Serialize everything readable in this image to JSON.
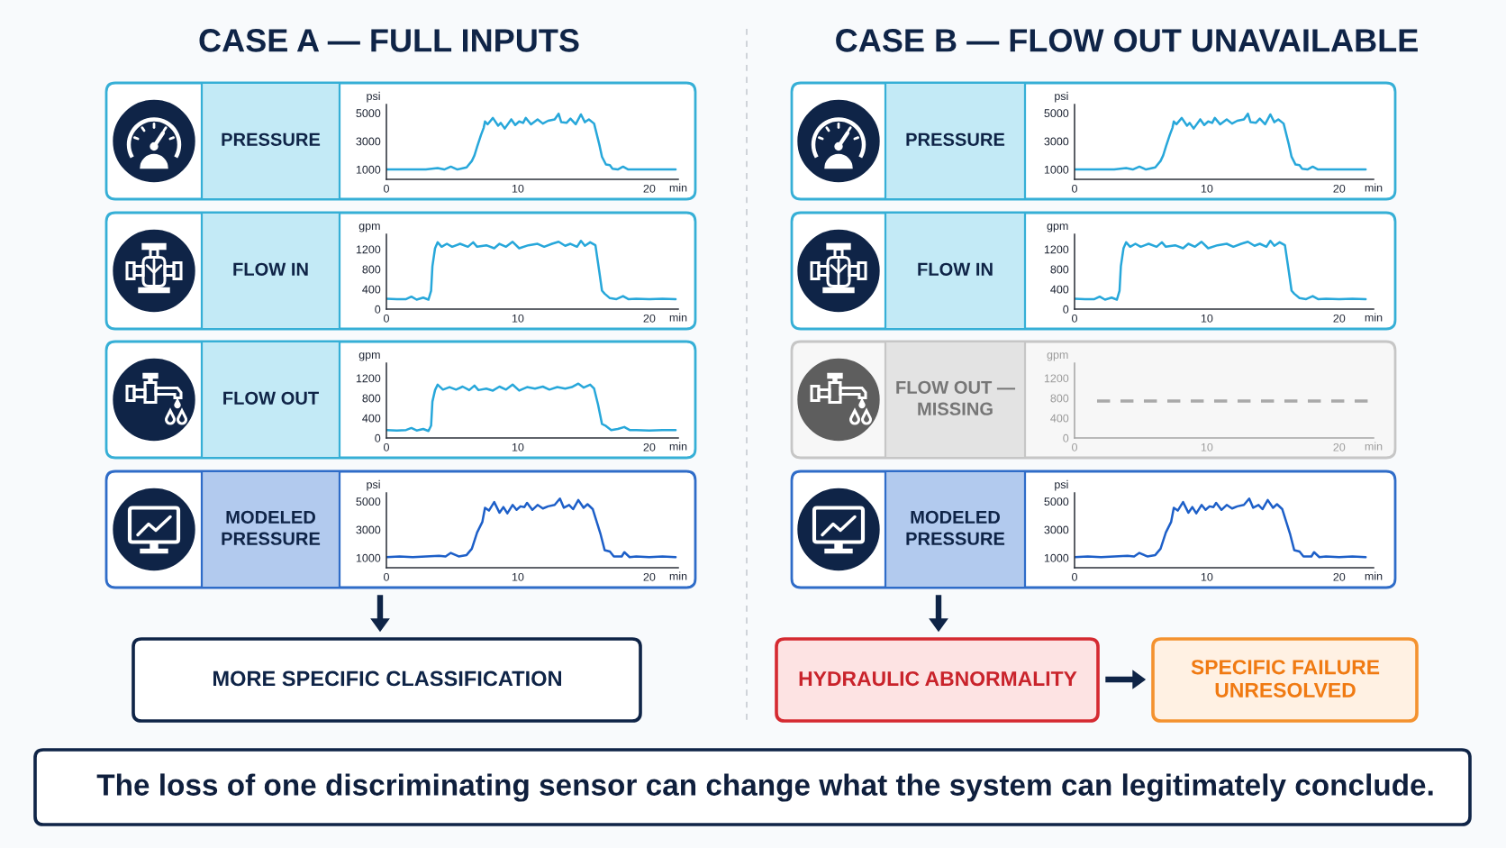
{
  "chart_data": [
    {
      "type": "other",
      "annotations": [
        "CASE A — FULL INPUTS",
        "CASE B — FLOW OUT UNAVAILABLE",
        "MORE SPECIFIC CLASSIFICATION",
        "HYDRAULIC ABNORMALITY",
        "SPECIFIC FAILURE\nUNRESOLVED",
        "The loss of one discriminating sensor can change what the system can legitimately conclude."
      ]
    },
    {
      "type": "line",
      "title": "PRESSURE",
      "xlabel": "min",
      "ylabel": "psi",
      "xlim": [
        0,
        22.2
      ],
      "xticks": [
        0,
        10,
        20
      ],
      "ylim": [
        300,
        5600
      ],
      "yticks": [
        1000,
        3000,
        5000
      ],
      "series": [
        {
          "color": "#27a7da",
          "x": [
            0,
            1,
            2,
            3,
            3.9,
            4.4,
            4.9,
            5.4,
            6.1,
            6.5,
            6.7,
            6.9,
            7.2,
            7.4,
            7.5,
            7.7,
            8.1,
            8.5,
            8.7,
            9,
            9.5,
            9.8,
            10.1,
            10.4,
            10.6,
            11,
            11.5,
            11.9,
            12.3,
            12.8,
            13.1,
            13.3,
            13.7,
            14,
            14.4,
            14.8,
            15.1,
            15.4,
            15.8,
            16,
            16.2,
            16.4,
            16.7,
            17,
            17.2,
            17.6,
            18,
            18.4,
            19,
            20,
            21,
            22
          ],
          "values": [
            1000,
            1000,
            1000,
            1000,
            1100,
            1000,
            1200,
            1000,
            1150,
            1600,
            2000,
            2600,
            3450,
            3950,
            4400,
            4200,
            4650,
            4100,
            4300,
            3900,
            4550,
            4150,
            4400,
            4300,
            4650,
            4200,
            4550,
            4250,
            4450,
            4550,
            4950,
            4350,
            4300,
            4600,
            4200,
            4900,
            4350,
            4550,
            4250,
            3500,
            2750,
            1900,
            1350,
            1300,
            1050,
            1000,
            1200,
            1000,
            1000,
            1000,
            1000,
            1000
          ]
        }
      ]
    },
    {
      "type": "line",
      "title": "FLOW IN",
      "xlabel": "min",
      "ylabel": "gpm",
      "xlim": [
        0,
        22.2
      ],
      "xticks": [
        0,
        10,
        20
      ],
      "ylim": [
        0,
        1500
      ],
      "yticks": [
        0,
        400,
        800,
        1200
      ],
      "series": [
        {
          "color": "#27a7da",
          "x": [
            0,
            0.8,
            1.5,
            1.9,
            2.3,
            2.8,
            3.2,
            3.4,
            3.5,
            3.7,
            3.9,
            4.2,
            4.6,
            5,
            5.6,
            6.2,
            6.6,
            6.9,
            7.6,
            8.2,
            8.6,
            9.1,
            9.6,
            10.1,
            10.8,
            11.5,
            12,
            12.6,
            13.1,
            13.6,
            14,
            14.5,
            14.8,
            15.1,
            15.5,
            15.9,
            16.2,
            16.4,
            16.6,
            17,
            17.5,
            18,
            18.4,
            19,
            20,
            21,
            22
          ],
          "values": [
            210,
            200,
            200,
            250,
            190,
            230,
            190,
            370,
            860,
            1220,
            1340,
            1250,
            1310,
            1250,
            1310,
            1250,
            1340,
            1250,
            1280,
            1220,
            1310,
            1250,
            1350,
            1220,
            1280,
            1310,
            1250,
            1310,
            1350,
            1270,
            1310,
            1250,
            1370,
            1270,
            1340,
            1280,
            740,
            370,
            310,
            220,
            200,
            260,
            200,
            210,
            200,
            210,
            200
          ]
        }
      ]
    },
    {
      "type": "line",
      "title": "FLOW OUT",
      "xlabel": "min",
      "ylabel": "gpm",
      "xlim": [
        0,
        22.2
      ],
      "xticks": [
        0,
        10,
        20
      ],
      "ylim": [
        0,
        1500
      ],
      "yticks": [
        0,
        400,
        800,
        1200
      ],
      "series": [
        {
          "color": "#27a7da",
          "x": [
            0,
            0.8,
            1.5,
            1.9,
            2.3,
            2.8,
            3.2,
            3.4,
            3.5,
            3.7,
            3.9,
            4.3,
            4.8,
            5.3,
            5.8,
            6.3,
            6.7,
            7,
            7.6,
            8.1,
            8.6,
            9.1,
            9.6,
            10.1,
            10.7,
            11.3,
            11.9,
            12.4,
            13,
            13.6,
            14.1,
            14.6,
            15,
            15.5,
            15.8,
            16.1,
            16.4,
            16.7,
            17.1,
            17.6,
            18.1,
            18.5,
            19,
            20,
            21,
            22
          ],
          "values": [
            160,
            150,
            160,
            200,
            150,
            180,
            140,
            250,
            730,
            960,
            1070,
            970,
            1020,
            970,
            1030,
            960,
            1050,
            960,
            990,
            950,
            1030,
            970,
            1070,
            950,
            1020,
            990,
            1030,
            970,
            1020,
            990,
            1020,
            1090,
            1010,
            1070,
            990,
            670,
            280,
            240,
            160,
            180,
            220,
            160,
            160,
            150,
            160,
            160
          ]
        }
      ]
    },
    {
      "type": "line",
      "title": "MODELED\nPRESSURE",
      "xlabel": "min",
      "ylabel": "psi",
      "xlim": [
        0,
        22.2
      ],
      "xticks": [
        0,
        10,
        20
      ],
      "ylim": [
        300,
        5600
      ],
      "yticks": [
        1000,
        3000,
        5000
      ],
      "series": [
        {
          "color": "#1d5fc8",
          "x": [
            0,
            1,
            2,
            3,
            4,
            4.5,
            4.9,
            5.5,
            6.1,
            6.5,
            6.9,
            7.3,
            7.5,
            7.8,
            8.2,
            8.6,
            8.9,
            9.2,
            9.6,
            9.9,
            10.2,
            10.5,
            10.7,
            11.1,
            11.5,
            11.9,
            12.3,
            12.8,
            13.2,
            13.5,
            13.9,
            14.2,
            14.6,
            15,
            15.3,
            15.7,
            16,
            16.3,
            16.6,
            17,
            17.3,
            17.9,
            18.1,
            18.5,
            19,
            20,
            21,
            22
          ],
          "values": [
            1050,
            1100,
            1050,
            1100,
            1150,
            1100,
            1350,
            1100,
            1200,
            1650,
            2800,
            3550,
            4550,
            4350,
            4950,
            4200,
            4600,
            4150,
            4750,
            4400,
            4650,
            4600,
            4900,
            4400,
            4750,
            4500,
            4650,
            4750,
            5200,
            4550,
            4750,
            4450,
            5100,
            4550,
            4800,
            4450,
            3550,
            2650,
            1550,
            1450,
            1100,
            1100,
            1400,
            1050,
            1100,
            1050,
            1100,
            1050
          ]
        }
      ]
    },
    {
      "type": "line",
      "title": "PRESSURE",
      "xlabel": "min",
      "ylabel": "psi",
      "xlim": [
        0,
        22.6
      ],
      "xticks": [
        0,
        10,
        20
      ],
      "ylim": [
        300,
        5600
      ],
      "yticks": [
        1000,
        3000,
        5000
      ],
      "series": [
        {
          "color": "#27a7da",
          "x": [
            0,
            1,
            2,
            3,
            3.9,
            4.4,
            4.9,
            5.4,
            6.1,
            6.5,
            6.7,
            6.9,
            7.2,
            7.4,
            7.5,
            7.7,
            8.1,
            8.5,
            8.7,
            9,
            9.5,
            9.8,
            10.1,
            10.4,
            10.6,
            11,
            11.5,
            11.9,
            12.3,
            12.8,
            13.1,
            13.3,
            13.7,
            14,
            14.4,
            14.8,
            15.1,
            15.4,
            15.8,
            16,
            16.2,
            16.4,
            16.7,
            17,
            17.2,
            17.6,
            18,
            18.4,
            19,
            20,
            21,
            22
          ],
          "values": [
            1000,
            1000,
            1000,
            1000,
            1100,
            1000,
            1200,
            1000,
            1150,
            1600,
            2000,
            2600,
            3450,
            3950,
            4400,
            4200,
            4650,
            4100,
            4300,
            3900,
            4550,
            4150,
            4400,
            4300,
            4650,
            4200,
            4550,
            4250,
            4450,
            4550,
            4950,
            4350,
            4300,
            4600,
            4200,
            4900,
            4350,
            4550,
            4250,
            3500,
            2750,
            1900,
            1350,
            1300,
            1050,
            1000,
            1200,
            1000,
            1000,
            1000,
            1000,
            1000
          ]
        }
      ]
    },
    {
      "type": "line",
      "title": "FLOW IN",
      "xlabel": "min",
      "ylabel": "gpm",
      "xlim": [
        0,
        22.6
      ],
      "xticks": [
        0,
        10,
        20
      ],
      "ylim": [
        0,
        1500
      ],
      "yticks": [
        0,
        400,
        800,
        1200
      ],
      "series": [
        {
          "color": "#27a7da",
          "x": [
            0,
            0.8,
            1.5,
            1.9,
            2.3,
            2.8,
            3.2,
            3.4,
            3.5,
            3.7,
            3.9,
            4.2,
            4.6,
            5,
            5.6,
            6.2,
            6.6,
            6.9,
            7.6,
            8.2,
            8.6,
            9.1,
            9.6,
            10.1,
            10.8,
            11.5,
            12,
            12.6,
            13.1,
            13.6,
            14,
            14.5,
            14.8,
            15.1,
            15.5,
            15.9,
            16.2,
            16.4,
            16.6,
            17,
            17.5,
            18,
            18.4,
            19,
            20,
            21,
            22
          ],
          "values": [
            210,
            200,
            200,
            250,
            190,
            230,
            190,
            370,
            860,
            1220,
            1340,
            1250,
            1310,
            1250,
            1310,
            1250,
            1340,
            1250,
            1280,
            1220,
            1310,
            1250,
            1350,
            1220,
            1280,
            1310,
            1250,
            1310,
            1350,
            1270,
            1310,
            1250,
            1370,
            1270,
            1340,
            1280,
            740,
            370,
            310,
            220,
            200,
            260,
            200,
            210,
            200,
            210,
            200
          ]
        }
      ]
    },
    {
      "type": "line",
      "title": "FLOW OUT —\nMISSING",
      "xlabel": "min",
      "ylabel": "gpm",
      "xlim": [
        0,
        22.6
      ],
      "xticks": [
        0,
        10,
        20
      ],
      "ylim": [
        0,
        1500
      ],
      "yticks": [
        0,
        400,
        800,
        1200
      ],
      "line_style": "dashed",
      "series": [
        {
          "color": "#a9a9a9",
          "x": [
            1.7,
            22.6
          ],
          "values": [
            740,
            740
          ]
        }
      ]
    },
    {
      "type": "line",
      "title": "MODELED\nPRESSURE",
      "xlabel": "min",
      "ylabel": "psi",
      "xlim": [
        0,
        22.6
      ],
      "xticks": [
        0,
        10,
        20
      ],
      "ylim": [
        300,
        5600
      ],
      "yticks": [
        1000,
        3000,
        5000
      ],
      "series": [
        {
          "color": "#1d5fc8",
          "x": [
            0,
            1,
            2,
            3,
            4,
            4.5,
            4.9,
            5.5,
            6.1,
            6.5,
            6.9,
            7.3,
            7.5,
            7.8,
            8.2,
            8.6,
            8.9,
            9.2,
            9.6,
            9.9,
            10.2,
            10.5,
            10.7,
            11.1,
            11.5,
            11.9,
            12.3,
            12.8,
            13.2,
            13.5,
            13.9,
            14.2,
            14.6,
            15,
            15.3,
            15.7,
            16,
            16.3,
            16.6,
            17,
            17.3,
            17.9,
            18.1,
            18.5,
            19,
            20,
            21,
            22
          ],
          "values": [
            1050,
            1100,
            1050,
            1100,
            1150,
            1100,
            1350,
            1100,
            1200,
            1650,
            2800,
            3550,
            4550,
            4350,
            4950,
            4200,
            4600,
            4150,
            4750,
            4400,
            4650,
            4600,
            4900,
            4400,
            4750,
            4500,
            4650,
            4750,
            5200,
            4550,
            4750,
            4450,
            5100,
            4550,
            4800,
            4450,
            3550,
            2650,
            1550,
            1450,
            1100,
            1100,
            1400,
            1050,
            1100,
            1050,
            1100,
            1050
          ]
        }
      ]
    }
  ]
}
